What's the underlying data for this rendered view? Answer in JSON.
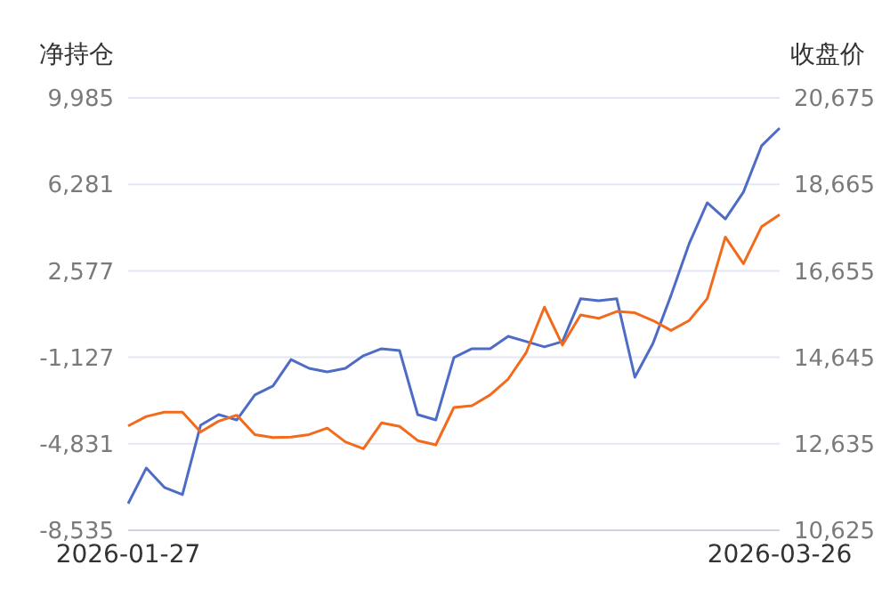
{
  "chart_data": {
    "type": "line",
    "ylabel": "净持仓",
    "y2label": "收盘价",
    "categories": [
      "2026-01-27",
      null,
      null,
      null,
      null,
      null,
      null,
      null,
      null,
      null,
      null,
      null,
      null,
      null,
      null,
      null,
      null,
      null,
      null,
      null,
      null,
      null,
      null,
      null,
      null,
      null,
      null,
      null,
      null,
      null,
      null,
      null,
      null,
      null,
      null,
      null,
      "2026-03-26"
    ],
    "series": [
      {
        "color": "#4e6cc6",
        "values": [
          -7390,
          -5870,
          -6700,
          -7010,
          -4040,
          -3580,
          -3810,
          -2740,
          -2360,
          -1220,
          -1600,
          -1750,
          -1600,
          -1060,
          -760,
          -840,
          -3580,
          -3810,
          -1140,
          -760,
          -760,
          -230,
          -450,
          -680,
          -450,
          1380,
          1300,
          1380,
          -1980,
          -530,
          1530,
          3740,
          5490,
          4800,
          5950,
          7930,
          8690
        ]
      },
      {
        "color": "#f26b1d",
        "axis": "y2",
        "values": [
          13050,
          13270,
          13370,
          13370,
          12910,
          13160,
          13300,
          12850,
          12780,
          12790,
          12850,
          13000,
          12680,
          12520,
          13120,
          13040,
          12710,
          12610,
          13480,
          13520,
          13770,
          14140,
          14760,
          15810,
          14930,
          15630,
          15550,
          15710,
          15680,
          15500,
          15270,
          15500,
          16010,
          17440,
          16820,
          17680,
          17960
        ]
      }
    ],
    "ylim": [
      -8535,
      9985
    ],
    "yticks": [
      {
        "value": -8535,
        "label": "-8,535"
      },
      {
        "value": -4831,
        "label": "-4,831"
      },
      {
        "value": -1127,
        "label": "-1,127"
      },
      {
        "value": 2577,
        "label": "2,577"
      },
      {
        "value": 6281,
        "label": "6,281"
      },
      {
        "value": 9985,
        "label": "9,985"
      }
    ],
    "y2lim": [
      10625,
      20675
    ],
    "y2ticks": [
      {
        "value": 10625,
        "label": "10,625"
      },
      {
        "value": 12635,
        "label": "12,635"
      },
      {
        "value": 14645,
        "label": "14,645"
      },
      {
        "value": 16655,
        "label": "16,655"
      },
      {
        "value": 18665,
        "label": "18,665"
      },
      {
        "value": 20675,
        "label": "20,675"
      }
    ],
    "grid": "y",
    "legend": false,
    "marker": "none",
    "line_style": "solid"
  }
}
